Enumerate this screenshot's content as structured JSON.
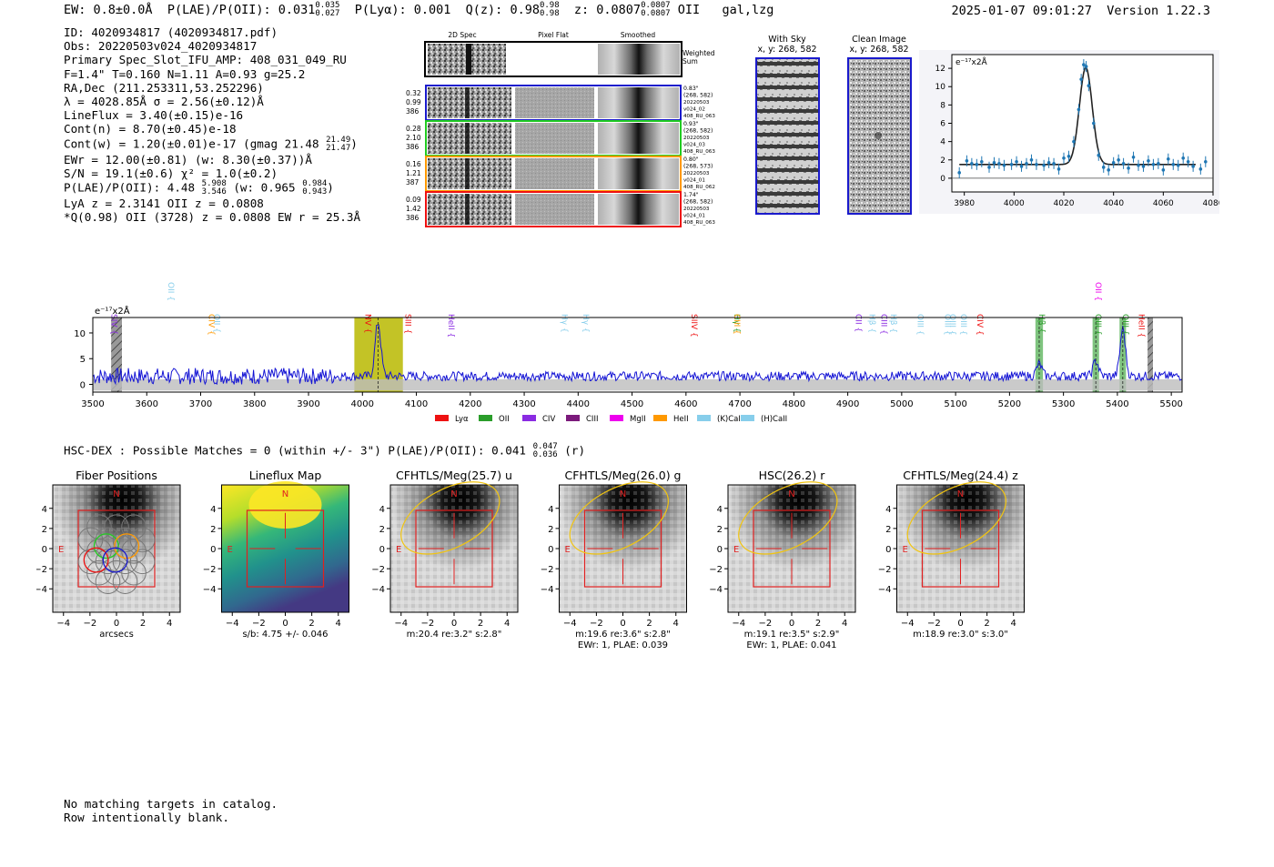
{
  "header": {
    "ew": "EW: 0.8±0.0Å",
    "plae_label": "P(LAE)/P(OII): 0.031",
    "plae_hi": "0.035",
    "plae_lo": "0.027",
    "plya": "P(Lyα): 0.001",
    "qz": "Q(z): 0.98",
    "qz_hi": "0.98",
    "qz_lo": "0.98",
    "z": "z: 0.0807",
    "z_hi": "0.0807",
    "z_lo": "0.0807",
    "z_line": "OII",
    "flags": "gal,lzg",
    "datetime": "2025-01-07 09:01:27",
    "version": "Version 1.22.3"
  },
  "info": {
    "id": "ID: 4020934817 (4020934817.pdf)",
    "obs": "Obs: 20220503v024_4020934817",
    "primary": "Primary Spec_Slot_IFU_AMP: 408_031_049_RU",
    "params": "F=1.4\"  T=0.160  N=1.11  A=0.93  g=25.2",
    "radec": "RA,Dec (211.253311,53.252296)",
    "lambda": "λ = 4028.85Å  σ = 2.56(±0.12)Å",
    "lineflux": "LineFlux = 3.40(±0.15)e-16",
    "contn": "Cont(n) = 8.70(±0.45)e-18",
    "contw": "Cont(w) = 1.20(±0.01)e-17 (gmag 21.48",
    "contw_hi": "21.49",
    "contw_lo": "21.47",
    "ewr": "EWr = 12.00(±0.81) (w: 8.30(±0.37))Å",
    "sn": "S/N = 19.1(±0.6)  χ² = 1.0(±0.2)",
    "plae": "P(LAE)/P(OII): 4.48",
    "plae_hi": "5.908",
    "plae_lo": "3.546",
    "plae_w": "(w: 0.965",
    "plae_w_hi": "0.984",
    "plae_w_lo": "0.943",
    "lya": "LyA z = 2.3141  OII z = 0.0808",
    "q": "*Q(0.98) OII (3728) z = 0.0808  EW r = 25.3Å"
  },
  "cutouts": {
    "col_headers": [
      "2D Spec",
      "Pixel Flat",
      "Smoothed"
    ],
    "weighted_sum": "Weighted Sum",
    "rows": [
      {
        "color": "#1a1acc",
        "left": [
          "0.32",
          "0.99",
          "386"
        ],
        "right": [
          "0.83\"",
          "(268, 582)",
          "20220503",
          "v024_02",
          "408_RU_063"
        ]
      },
      {
        "color": "#22cc22",
        "left": [
          "0.28",
          "2.10",
          "386"
        ],
        "right": [
          "0.93\"",
          "(268, 582)",
          "20220503",
          "v024_03",
          "408_RU_063"
        ]
      },
      {
        "color": "#ff9900",
        "left": [
          "0.16",
          "1.21",
          "387"
        ],
        "right": [
          "0.80\"",
          "(268, 573)",
          "20220503",
          "v024_01",
          "408_RU_062"
        ]
      },
      {
        "color": "#ee1111",
        "left": [
          "0.09",
          "1.42",
          "386"
        ],
        "right": [
          "1.74\"",
          "(268, 582)",
          "20220503",
          "v024_01",
          "408_RU_063"
        ]
      }
    ]
  },
  "sky": {
    "title": "With Sky",
    "coords": "x, y: 268, 582"
  },
  "clean": {
    "title": "Clean Image",
    "coords": "x, y: 268, 582"
  },
  "fit_plot": {
    "chart_data": {
      "type": "line",
      "title": "",
      "ylabel": "e⁻¹⁷x2Å",
      "xlim": [
        3975,
        4080
      ],
      "ylim": [
        -1.5,
        13.5
      ],
      "xticks": [
        3980,
        4000,
        4020,
        4040,
        4060,
        4080
      ],
      "yticks": [
        0,
        2,
        4,
        6,
        8,
        10,
        12
      ],
      "gaussian": {
        "center": 4028.85,
        "sigma": 2.56,
        "peak": 12.1,
        "baseline": 1.5
      },
      "points_x": [
        3978,
        3981,
        3983,
        3985,
        3987,
        3990,
        3992,
        3994,
        3996,
        3999,
        4001,
        4003,
        4005,
        4007,
        4009,
        4012,
        4014,
        4016,
        4018,
        4020,
        4022,
        4024,
        4026,
        4027,
        4028,
        4029,
        4030,
        4032,
        4034,
        4036,
        4038,
        4040,
        4042,
        4044,
        4046,
        4048,
        4050,
        4052,
        4054,
        4056,
        4058,
        4060,
        4062,
        4064,
        4066,
        4068,
        4070,
        4072,
        4075,
        4077
      ],
      "points_y": [
        0.6,
        1.9,
        1.6,
        1.5,
        1.8,
        1.2,
        1.7,
        1.6,
        1.4,
        1.5,
        1.8,
        1.3,
        1.6,
        2.0,
        1.5,
        1.4,
        1.7,
        1.6,
        1.0,
        2.2,
        2.4,
        4.0,
        7.5,
        10.8,
        12.4,
        12.2,
        10.1,
        6.0,
        2.5,
        1.2,
        0.9,
        1.7,
        2.0,
        1.6,
        1.1,
        2.3,
        1.4,
        1.3,
        1.9,
        1.5,
        1.6,
        0.9,
        2.1,
        1.5,
        1.4,
        2.2,
        1.8,
        1.3,
        1.0,
        1.8
      ]
    }
  },
  "spectrum": {
    "chart_data": {
      "type": "line",
      "ylabel": "e⁻¹⁷x2Å",
      "xlim": [
        3500,
        5520
      ],
      "ylim": [
        -1.5,
        13
      ],
      "xticks": [
        3500,
        3600,
        3700,
        3800,
        3900,
        4000,
        4100,
        4200,
        4300,
        4400,
        4500,
        4600,
        4700,
        4800,
        4900,
        5000,
        5100,
        5200,
        5300,
        5400,
        5500
      ],
      "yticks": [
        0,
        5,
        10
      ],
      "highlight_band": [
        3985,
        4075
      ],
      "emission_peaks": [
        {
          "x": 4028.85,
          "height": 12.1,
          "sigma": 2.6
        },
        {
          "x": 5255,
          "height": 4.0,
          "sigma": 2.5
        },
        {
          "x": 5360,
          "height": 4.6,
          "sigma": 2.5
        },
        {
          "x": 5410,
          "height": 10.8,
          "sigma": 2.5
        }
      ],
      "green_bands": [
        [
          5248,
          5262
        ],
        [
          5354,
          5366
        ],
        [
          5404,
          5416
        ]
      ],
      "hatched_bands": [
        [
          3534,
          3554
        ],
        [
          5456,
          5466
        ]
      ],
      "continuum": 1.6,
      "line_labels": [
        {
          "text": "SIV",
          "x": 3535,
          "color": "#8a2be2"
        },
        {
          "text": "OII",
          "x": 3640,
          "color": "#87ceeb"
        },
        {
          "text": "CIV",
          "x": 3715,
          "color": "#ff9900"
        },
        {
          "text": "OII",
          "x": 3725,
          "color": "#87ceeb"
        },
        {
          "text": "NV",
          "x": 4005,
          "color": "#ee1111"
        },
        {
          "text": "SIII",
          "x": 4080,
          "color": "#ee1111"
        },
        {
          "text": "HeII",
          "x": 4160,
          "color": "#8a2be2"
        },
        {
          "text": "Hγ",
          "x": 4370,
          "color": "#87ceeb"
        },
        {
          "text": "Hγ",
          "x": 4410,
          "color": "#87ceeb"
        },
        {
          "text": "SIIV",
          "x": 4610,
          "color": "#ee1111"
        },
        {
          "text": "Hγ",
          "x": 4690,
          "color": "#2a9d2a"
        },
        {
          "text": "CIII",
          "x": 4690,
          "color": "#ff9900"
        },
        {
          "text": "CII",
          "x": 4915,
          "color": "#8a2be2"
        },
        {
          "text": "Hβ",
          "x": 4940,
          "color": "#87ceeb"
        },
        {
          "text": "CIII",
          "x": 4962,
          "color": "#8a2be2"
        },
        {
          "text": "Hβ",
          "x": 4980,
          "color": "#87ceeb"
        },
        {
          "text": "OIII",
          "x": 5030,
          "color": "#87ceeb"
        },
        {
          "text": "OIII",
          "x": 5080,
          "color": "#87ceeb"
        },
        {
          "text": "CIV",
          "x": 5140,
          "color": "#ee1111"
        },
        {
          "text": "OIII",
          "x": 5090,
          "color": "#87ceeb"
        },
        {
          "text": "OIII",
          "x": 5110,
          "color": "#87ceeb"
        },
        {
          "text": "Hβ",
          "x": 5255,
          "color": "#2a9d2a"
        },
        {
          "text": "OII",
          "x": 5360,
          "color": "#ee00ee"
        },
        {
          "text": "OIII",
          "x": 5360,
          "color": "#2a9d2a"
        },
        {
          "text": "OIII",
          "x": 5410,
          "color": "#2a9d2a"
        },
        {
          "text": "HeII",
          "x": 5440,
          "color": "#ee1111"
        }
      ],
      "legend": [
        {
          "label": "Lyα",
          "color": "#ee1111"
        },
        {
          "label": "OII",
          "color": "#2a9d2a"
        },
        {
          "label": "CIV",
          "color": "#8a2be2"
        },
        {
          "label": "CIII",
          "color": "#7b1a7b"
        },
        {
          "label": "MgII",
          "color": "#ee00ee"
        },
        {
          "label": "HeII",
          "color": "#ff9900"
        },
        {
          "label": "(K)CaII",
          "color": "#87ceeb"
        },
        {
          "label": "(H)CaII",
          "color": "#87ceeb"
        }
      ]
    }
  },
  "hsc_line": {
    "text": "HSC-DEX : Possible Matches = 0 (within +/- 3\")  P(LAE)/P(OII): 0.041",
    "hi": "0.047",
    "lo": "0.036",
    "band": "(r)"
  },
  "panels": [
    {
      "title": "Fiber Positions",
      "caption1": "arcsecs",
      "caption2": ""
    },
    {
      "title": "Lineflux Map",
      "caption1": "s/b: 4.75 +/- 0.046",
      "caption2": ""
    },
    {
      "title": "CFHTLS/Meg(25.7) u",
      "caption1": "m:20.4  re:3.2\"  s:2.8\"",
      "caption2": ""
    },
    {
      "title": "CFHTLS/Meg(26.0) g",
      "caption1": "m:19.6  re:3.6\"  s:2.8\"",
      "caption2": "EWr: 1, PLAE: 0.039"
    },
    {
      "title": "HSC(26.2) r",
      "caption1": "m:19.1  re:3.5\"  s:2.9\"",
      "caption2": "EWr: 1, PLAE: 0.041"
    },
    {
      "title": "CFHTLS/Meg(24.4) z",
      "caption1": "m:18.9  re:3.0\"  s:3.0\"",
      "caption2": ""
    }
  ],
  "panel_axes": {
    "ticks": [
      "−4",
      "−2",
      "0",
      "2",
      "4"
    ],
    "n_label": "N",
    "e_label": "E"
  },
  "footer": {
    "line1": "No matching targets in catalog.",
    "line2": "Row intentionally blank."
  }
}
